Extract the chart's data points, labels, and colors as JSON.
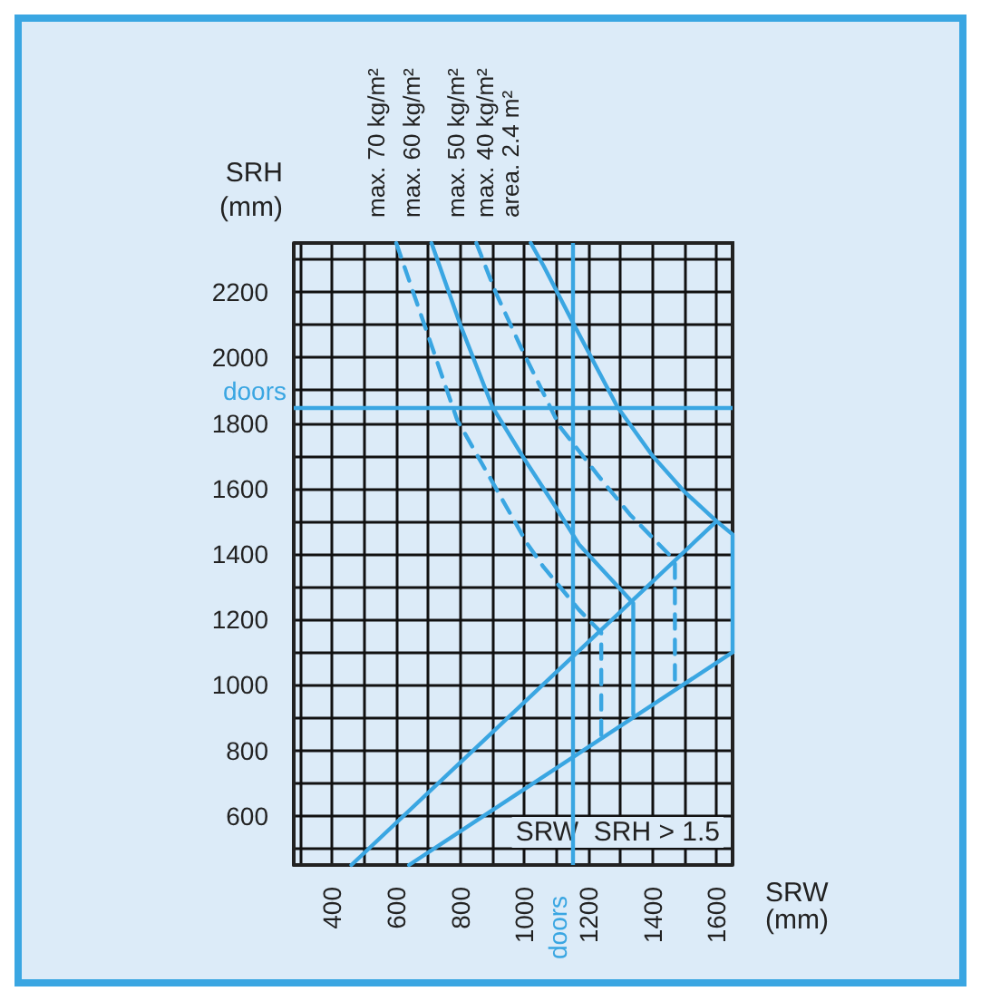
{
  "chart_data": {
    "type": "line",
    "xlabel": "SRW (mm)",
    "ylabel": "SRH (mm)",
    "xlim": [
      280,
      1650
    ],
    "ylim": [
      450,
      2350
    ],
    "xticks": [
      {
        "value": 300,
        "label": null
      },
      400,
      {
        "value": 500,
        "label": null
      },
      600,
      {
        "value": 700,
        "label": null
      },
      800,
      {
        "value": 900,
        "label": null
      },
      1000,
      {
        "value": 1100,
        "label": null
      },
      1200,
      {
        "value": 1300,
        "label": null
      },
      1400,
      {
        "value": 1500,
        "label": null
      },
      1600
    ],
    "yticks": [
      {
        "value": 500,
        "label": null
      },
      600,
      {
        "value": 700,
        "label": null
      },
      800,
      {
        "value": 900,
        "label": null
      },
      1000,
      {
        "value": 1100,
        "label": null
      },
      1200,
      {
        "value": 1300,
        "label": null
      },
      1400,
      {
        "value": 1500,
        "label": null
      },
      1600,
      {
        "value": 1700,
        "label": null
      },
      1800,
      {
        "value": 1900,
        "label": null
      },
      2000,
      {
        "value": 2100,
        "label": null
      },
      2200,
      {
        "value": 2300,
        "label": null
      }
    ],
    "grid": true,
    "legend": false,
    "marker": "none",
    "series": [
      {
        "name": "max. 70 kg/m²",
        "color": "#3aa6e2",
        "line_style": "dashed",
        "x": [
          600,
          790,
          1010,
          1060,
          1170,
          1240,
          1240
        ],
        "values": [
          2350,
          1810,
          1430,
          1360,
          1230,
          1160,
          840
        ]
      },
      {
        "name": "max. 60 kg/m²",
        "color": "#3aa6e2",
        "line_style": "solid",
        "x": [
          710,
          800,
          900,
          1000,
          1100,
          1170,
          1340,
          1340
        ],
        "values": [
          2350,
          2100,
          1850,
          1690,
          1540,
          1430,
          1250,
          910
        ]
      },
      {
        "name": "max. 50 kg/m²",
        "color": "#3aa6e2",
        "line_style": "dashed",
        "x": [
          850,
          910,
          990,
          1060,
          1110,
          1230,
          1330,
          1450,
          1470,
          1470
        ],
        "values": [
          2350,
          2200,
          2030,
          1890,
          1790,
          1640,
          1520,
          1400,
          1370,
          990
        ]
      },
      {
        "name": "max. 40 kg/m²\narea. 2.4 m²",
        "color": "#3aa6e2",
        "line_style": "solid",
        "x": [
          1020,
          1060,
          1150,
          1290,
          1400,
          1500,
          1600,
          1650,
          1650
        ],
        "values": [
          2350,
          2280,
          2110,
          1850,
          1700,
          1590,
          1500,
          1460,
          1100
        ]
      },
      {
        "color": "#3aa6e2",
        "line_style": "solid",
        "x": [
          460,
          1600
        ],
        "values": [
          450,
          1500
        ]
      },
      {
        "color": "#3aa6e2",
        "line_style": "solid",
        "x": [
          640,
          1650
        ],
        "values": [
          450,
          1100
        ]
      }
    ],
    "ref_lines": [
      {
        "axis": "x",
        "value": 1150,
        "label": "doors",
        "color": "#3aa6e2"
      },
      {
        "axis": "y",
        "value": 1850,
        "label": "doors",
        "color": "#3aa6e2"
      }
    ],
    "annotations": [
      "SRW  SRH > 1.5"
    ]
  }
}
